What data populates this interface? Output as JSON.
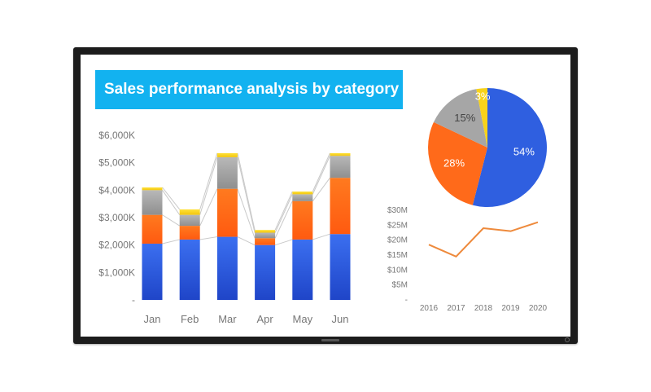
{
  "title": "Sales performance analysis by category",
  "colors": {
    "blue": "#2f5fe0",
    "orange": "#ff6a1a",
    "gray": "#a6a6a6",
    "yellow": "#f7d21a",
    "line": "#ee8a3c",
    "banner": "#12b2f0"
  },
  "chart_data": [
    {
      "type": "bar",
      "stacked": true,
      "categories": [
        "Jan",
        "Feb",
        "Mar",
        "Apr",
        "May",
        "Jun"
      ],
      "series": [
        {
          "color": "blue",
          "values": [
            2050,
            2200,
            2300,
            2000,
            2200,
            2400
          ]
        },
        {
          "color": "orange",
          "values": [
            1050,
            500,
            1750,
            250,
            1400,
            2050
          ]
        },
        {
          "color": "gray",
          "values": [
            900,
            400,
            1150,
            200,
            250,
            800
          ]
        },
        {
          "color": "yellow",
          "values": [
            100,
            200,
            150,
            100,
            100,
            100
          ]
        }
      ],
      "ylim": [
        0,
        6000
      ],
      "yticks": [
        "-",
        "$1,000K",
        "$2,000K",
        "$3,000K",
        "$4,000K",
        "$5,000K",
        "$6,000K"
      ],
      "connector_lines": true
    },
    {
      "type": "pie",
      "slices": [
        {
          "label": "54%",
          "value": 54,
          "color": "blue"
        },
        {
          "label": "28%",
          "value": 28,
          "color": "orange"
        },
        {
          "label": "15%",
          "value": 15,
          "color": "gray"
        },
        {
          "label": "3%",
          "value": 3,
          "color": "yellow"
        }
      ]
    },
    {
      "type": "line",
      "x": [
        "2016",
        "2017",
        "2018",
        "2019",
        "2020"
      ],
      "values": [
        18.5,
        14.5,
        24,
        23,
        26
      ],
      "ylim": [
        0,
        30
      ],
      "yticks": [
        "-",
        "$5M",
        "$10M",
        "$15M",
        "$20M",
        "$25M",
        "$30M"
      ]
    }
  ]
}
